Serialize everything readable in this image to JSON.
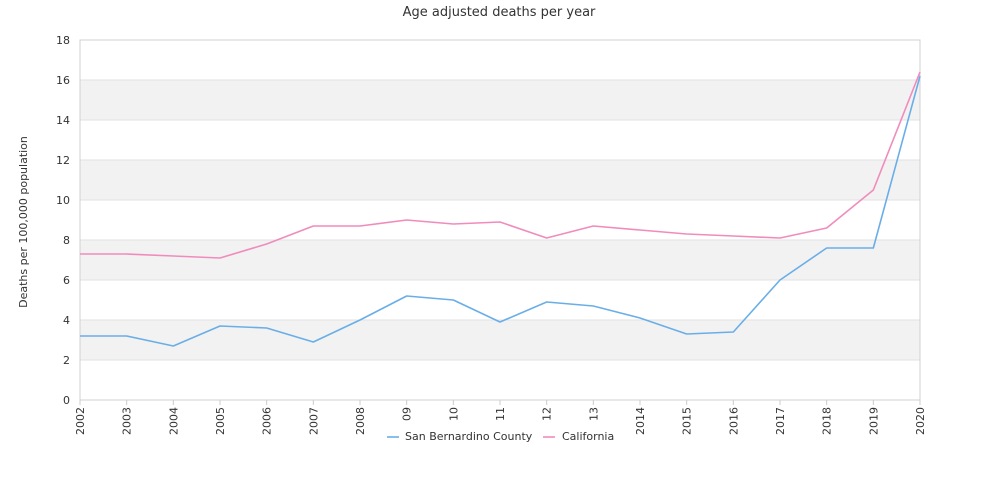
{
  "chart_data": {
    "type": "line",
    "title": "Age adjusted deaths per year",
    "xlabel": "",
    "ylabel": "Deaths per 100,000 population",
    "categories": [
      "2002",
      "2003",
      "2004",
      "2005",
      "2006",
      "2007",
      "2008",
      "09",
      "10",
      "11",
      "12",
      "13",
      "2014",
      "2015",
      "2016",
      "2017",
      "2018",
      "2019",
      "2020"
    ],
    "ylim": [
      0,
      18
    ],
    "yticks": [
      "0",
      "2",
      "4",
      "6",
      "8",
      "10",
      "12",
      "14",
      "16",
      "18"
    ],
    "grid": "alternating horizontal bands",
    "legend_position": "bottom",
    "series": [
      {
        "name": "San Bernardino County",
        "color": "#6aaee8",
        "values": [
          3.2,
          3.2,
          2.7,
          3.7,
          3.6,
          2.9,
          4.0,
          5.2,
          5.0,
          3.9,
          4.9,
          4.7,
          4.1,
          3.3,
          3.4,
          6.0,
          7.6,
          7.6,
          16.2
        ]
      },
      {
        "name": "California",
        "color": "#f08cbc",
        "values": [
          7.3,
          7.3,
          7.2,
          7.1,
          7.8,
          8.7,
          8.7,
          9.0,
          8.8,
          8.9,
          8.1,
          8.7,
          8.5,
          8.3,
          8.2,
          8.1,
          8.6,
          10.5,
          16.4
        ]
      }
    ]
  }
}
